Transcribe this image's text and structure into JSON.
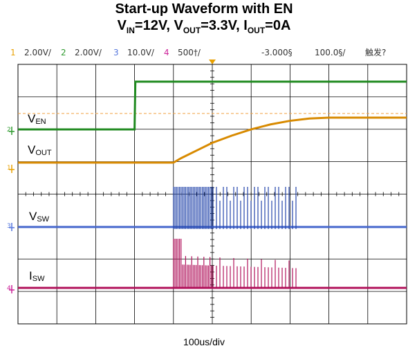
{
  "title": {
    "line1": "Start-up Waveform with EN",
    "vin_sym": "V",
    "vin_sub": "IN",
    "vin_val": "=12V, ",
    "vout_sym": "V",
    "vout_sub": "OUT",
    "vout_val": "=3.3V, ",
    "iout_sym": "I",
    "iout_sub": "OUT",
    "iout_val": "=0A"
  },
  "scope_header": {
    "channels": [
      {
        "num": "1",
        "scale": "2.00V/",
        "color": "#e8a000"
      },
      {
        "num": "2",
        "scale": "2.00V/",
        "color": "#2e9a2e"
      },
      {
        "num": "3",
        "scale": "10.0V/",
        "color": "#5577dd"
      },
      {
        "num": "4",
        "scale": "500†/",
        "color": "#cc2299"
      }
    ],
    "trigger_pos": "-3.000§",
    "time_scale": "100.0§/",
    "trigger_status": "触发?"
  },
  "trace_labels": {
    "ven": {
      "sym": "V",
      "sub": "EN"
    },
    "vout": {
      "sym": "V",
      "sub": "OUT"
    },
    "vsw": {
      "sym": "V",
      "sub": "SW"
    },
    "isw": {
      "sym": "I",
      "sub": "SW"
    }
  },
  "x_axis_label": "100us/div",
  "colors": {
    "ven": "#1f8a1f",
    "vout": "#d88a00",
    "vsw": "#2244aa",
    "isw": "#b0105a",
    "grid": "#000000"
  },
  "chart_data": {
    "type": "line",
    "title": "Start-up Waveform with EN",
    "xlabel": "100us/div",
    "grid": true,
    "x_units": "div",
    "xlim": [
      0,
      10
    ],
    "series": [
      {
        "name": "V_EN",
        "x": [
          0,
          3,
          3.02,
          10
        ],
        "y": [
          0,
          0,
          1,
          1
        ]
      },
      {
        "name": "V_OUT",
        "x": [
          0,
          4,
          4.2,
          4.6,
          5,
          5.5,
          6,
          6.5,
          7,
          7.5,
          8,
          10
        ],
        "y": [
          0,
          0,
          0.1,
          0.27,
          0.44,
          0.6,
          0.74,
          0.85,
          0.93,
          0.98,
          1,
          1
        ]
      },
      {
        "name": "V_SW",
        "x_start": 4.0,
        "x_end": 7.2
      },
      {
        "name": "I_SW",
        "x_start": 4.0,
        "x_end": 7.2
      }
    ]
  }
}
